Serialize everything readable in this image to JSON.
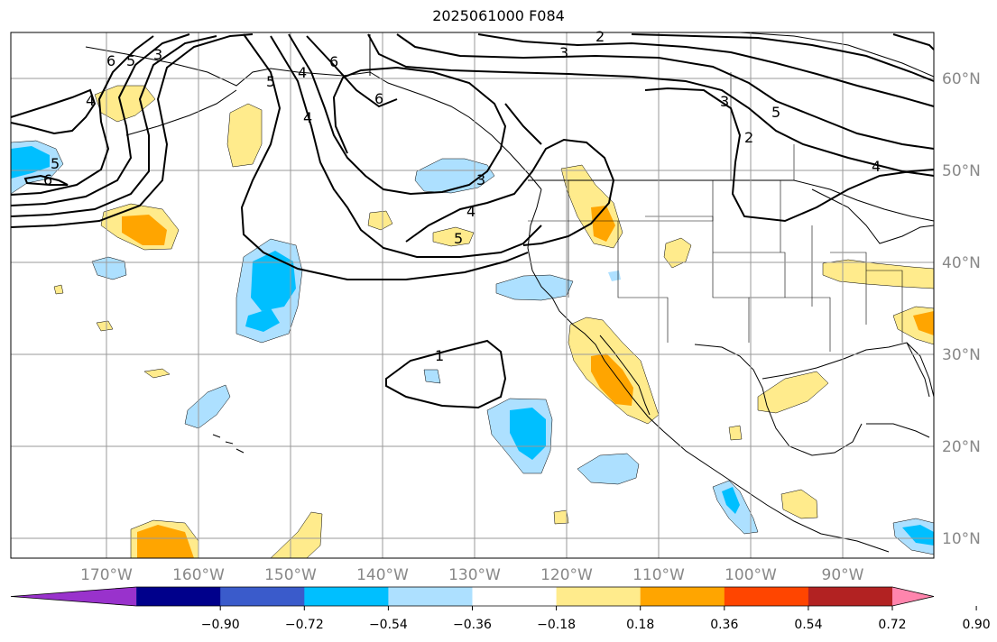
{
  "title": "2025061000 F084",
  "lon_labels": [
    "170°W",
    "160°W",
    "150°W",
    "140°W",
    "130°W",
    "120°W",
    "110°W",
    "100°W",
    "90°W"
  ],
  "lat_labels": [
    "60°N",
    "50°N",
    "40°N",
    "30°N",
    "20°N",
    "10°N"
  ],
  "colorbar": {
    "colors": [
      "#9932CC",
      "#00008B",
      "#3A5BCB",
      "#00BFFF",
      "#ADE0FF",
      "#FFFFFF",
      "#FFEB8C",
      "#FFA500",
      "#FF4500",
      "#B22222",
      "#FF85AD"
    ],
    "labels": [
      "−0.90",
      "−0.72",
      "−0.54",
      "−0.36",
      "−0.18",
      "0.18",
      "0.36",
      "0.54",
      "0.72",
      "0.90"
    ]
  },
  "contour_labels": [
    "6",
    "5",
    "4",
    "3",
    "6",
    "4",
    "5",
    "6",
    "3",
    "2",
    "4",
    "5",
    "6",
    "5",
    "4",
    "3",
    "2",
    "1",
    "3",
    "4",
    "5"
  ],
  "colors": {
    "coast": "#000000",
    "grid": "#9a9a9a",
    "contour": "#000000"
  }
}
